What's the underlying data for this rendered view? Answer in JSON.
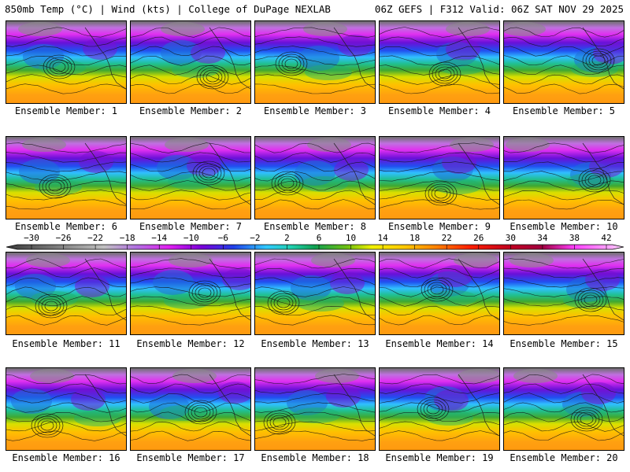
{
  "header": {
    "left": "850mb Temp (°C) | Wind (kts) | College of DuPage NEXLAB",
    "right": "06Z GEFS | F312 Valid: 06Z SAT NOV 29 2025"
  },
  "colorbar": {
    "ticks": [
      "-30",
      "-26",
      "-22",
      "-18",
      "-14",
      "-10",
      "-6",
      "-2",
      "2",
      "6",
      "10",
      "14",
      "18",
      "22",
      "26",
      "30",
      "34",
      "38",
      "42"
    ],
    "range_c": [
      -32,
      44
    ],
    "stops": [
      {
        "v": -32,
        "c": "#3a3a3a"
      },
      {
        "v": -26,
        "c": "#7a7a7a"
      },
      {
        "v": -20,
        "c": "#c0c0c0"
      },
      {
        "v": -16,
        "c": "#b070e0"
      },
      {
        "v": -12,
        "c": "#e020f0"
      },
      {
        "v": -8,
        "c": "#7a00d8"
      },
      {
        "v": -4,
        "c": "#2040e8"
      },
      {
        "v": 0,
        "c": "#30c8ff"
      },
      {
        "v": 3,
        "c": "#20d0b0"
      },
      {
        "v": 6,
        "c": "#10a050"
      },
      {
        "v": 10,
        "c": "#70c010"
      },
      {
        "v": 13,
        "c": "#f0f000"
      },
      {
        "v": 17,
        "c": "#ffc800"
      },
      {
        "v": 21,
        "c": "#ff8000"
      },
      {
        "v": 25,
        "c": "#ff2000"
      },
      {
        "v": 30,
        "c": "#c00020"
      },
      {
        "v": 34,
        "c": "#a00040"
      },
      {
        "v": 38,
        "c": "#ff40ff"
      },
      {
        "v": 44,
        "c": "#f8d0f8"
      }
    ]
  },
  "panels": [
    {
      "label": "Ensemble Member: 1"
    },
    {
      "label": "Ensemble Member: 2"
    },
    {
      "label": "Ensemble Member: 3"
    },
    {
      "label": "Ensemble Member: 4"
    },
    {
      "label": "Ensemble Member: 5"
    },
    {
      "label": "Ensemble Member: 6"
    },
    {
      "label": "Ensemble Member: 7"
    },
    {
      "label": "Ensemble Member: 8"
    },
    {
      "label": "Ensemble Member: 9"
    },
    {
      "label": "Ensemble Member: 10"
    },
    {
      "label": "Ensemble Member: 11"
    },
    {
      "label": "Ensemble Member: 12"
    },
    {
      "label": "Ensemble Member: 13"
    },
    {
      "label": "Ensemble Member: 14"
    },
    {
      "label": "Ensemble Member: 15"
    },
    {
      "label": "Ensemble Member: 16"
    },
    {
      "label": "Ensemble Member: 17"
    },
    {
      "label": "Ensemble Member: 18"
    },
    {
      "label": "Ensemble Member: 19"
    },
    {
      "label": "Ensemble Member: 20"
    }
  ]
}
